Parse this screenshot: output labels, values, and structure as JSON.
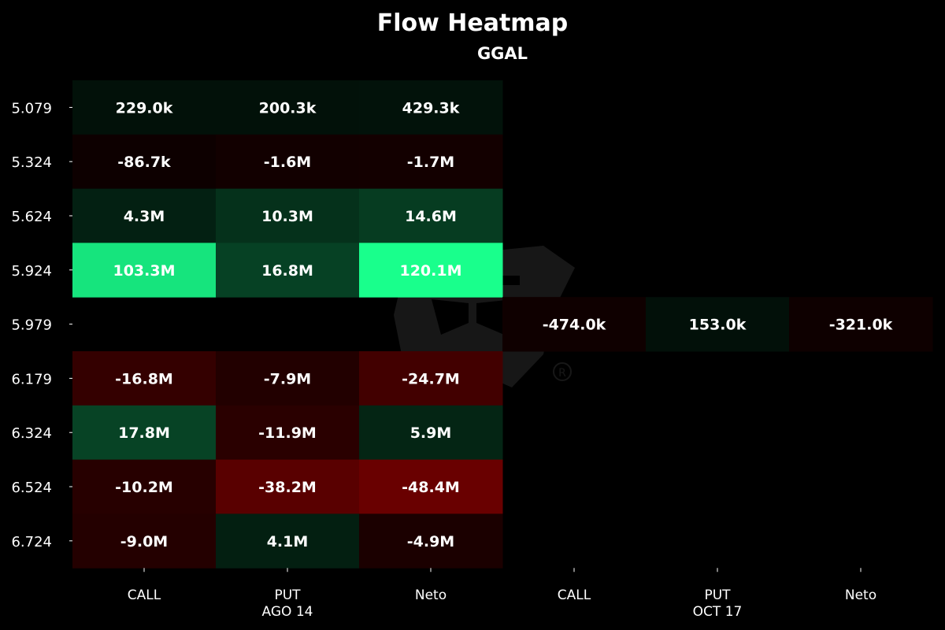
{
  "chart_data": {
    "type": "heatmap",
    "title": "Flow Heatmap",
    "subtitle": "GGAL",
    "rows": [
      "5.079",
      "5.324",
      "5.624",
      "5.924",
      "5.979",
      "6.179",
      "6.324",
      "6.524",
      "6.724"
    ],
    "columns": [
      "CALL",
      "PUT",
      "Neto",
      "CALL",
      "PUT",
      "Neto"
    ],
    "column_groups": [
      {
        "label": "AGO 14",
        "span": 3
      },
      {
        "label": "OCT 17",
        "span": 3
      }
    ],
    "values": [
      [
        229000,
        200300,
        429300,
        null,
        null,
        null
      ],
      [
        -86700,
        -1600000,
        -1700000,
        null,
        null,
        null
      ],
      [
        4300000,
        10300000,
        14600000,
        null,
        null,
        null
      ],
      [
        103300000,
        16800000,
        120100000,
        null,
        null,
        null
      ],
      [
        null,
        null,
        null,
        -474000,
        153000,
        -321000
      ],
      [
        -16800000,
        -7900000,
        -24700000,
        null,
        null,
        null
      ],
      [
        17800000,
        -11900000,
        5900000,
        null,
        null,
        null
      ],
      [
        -10200000,
        -38200000,
        -48400000,
        null,
        null,
        null
      ],
      [
        -9000000,
        4100000,
        -4900000,
        null,
        null,
        null
      ]
    ],
    "labels": [
      [
        "229.0k",
        "200.3k",
        "429.3k",
        "",
        "",
        ""
      ],
      [
        "-86.7k",
        "-1.6M",
        "-1.7M",
        "",
        "",
        ""
      ],
      [
        "4.3M",
        "10.3M",
        "14.6M",
        "",
        "",
        ""
      ],
      [
        "103.3M",
        "16.8M",
        "120.1M",
        "",
        "",
        ""
      ],
      [
        "",
        "",
        "",
        "-474.0k",
        "153.0k",
        "-321.0k"
      ],
      [
        "-16.8M",
        "-7.9M",
        "-24.7M",
        "",
        "",
        ""
      ],
      [
        "17.8M",
        "-11.9M",
        "5.9M",
        "",
        "",
        ""
      ],
      [
        "-10.2M",
        "-38.2M",
        "-48.4M",
        "",
        "",
        ""
      ],
      [
        "-9.0M",
        "4.1M",
        "-4.9M",
        "",
        "",
        ""
      ]
    ],
    "max_abs": 120100000,
    "colors": {
      "background": "#000000",
      "positive": "#19ff8c",
      "negative": "#cc0000",
      "text": "#ffffff"
    },
    "grid": false,
    "legend": "none"
  }
}
